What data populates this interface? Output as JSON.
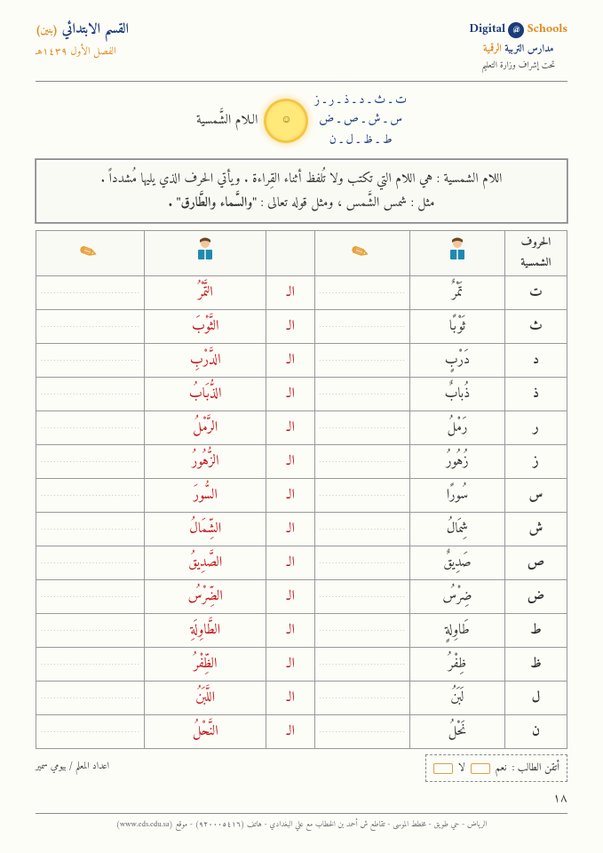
{
  "header": {
    "logo_en_left": "Digital",
    "logo_at": "@",
    "logo_en_right": "Schools",
    "logo_ar1_a": "مدارس التربية ",
    "logo_ar1_b": "الرقمية",
    "logo_ar2": "تحت إشراف وزارة التعليم",
    "section_title": "القسم الابتدائي",
    "section_sub": "(بنين)",
    "term": "الفصل الأول ١٤٣٩هـ"
  },
  "diagram": {
    "title": "الـلام الشَّمسية",
    "sun_face": "☺",
    "letters_line1": "ت ـ ث ـ د ـ ذ ـ ر ـ ز",
    "letters_line2": "س ـ ش ـ ص ـ ض",
    "letters_line3": "ط ـ ظ ـ ل ـ ن"
  },
  "definition": {
    "line1": "اللام الشمسية : هي اللام التي تكتب ولا تُلفظ أثناء القِراءة . ويأتي الحرف الذي يليها مُشدداً .",
    "line2_a": "مثل : شمس الشَّمس ، ومثل قوله تعالى : ",
    "line2_b": "\"والسَّماء والطَّارق\" ."
  },
  "table": {
    "header_letter": "الحروف الشمسية",
    "rows": [
      {
        "letter": "ت",
        "read": "تَمْرٌ",
        "al": "الـ",
        "word": "التَّمْرُ"
      },
      {
        "letter": "ث",
        "read": "ثَوْبًا",
        "al": "الـ",
        "word": "الثَّوْبَ"
      },
      {
        "letter": "د",
        "read": "دَرْبٍ",
        "al": "الـ",
        "word": "الدَّرْبِ"
      },
      {
        "letter": "ذ",
        "read": "ذُبابٌ",
        "al": "الـ",
        "word": "الذُّبَابُ"
      },
      {
        "letter": "ر",
        "read": "رَمْلُ",
        "al": "الـ",
        "word": "الرَّمْلُ"
      },
      {
        "letter": "ز",
        "read": "زُهُورُ",
        "al": "الـ",
        "word": "الزُّهُورُ"
      },
      {
        "letter": "س",
        "read": "سُورًا",
        "al": "الـ",
        "word": "السُّورَ"
      },
      {
        "letter": "ش",
        "read": "شِمَالُ",
        "al": "الـ",
        "word": "الشِّمَالُ"
      },
      {
        "letter": "ص",
        "read": "صَدِيقٌ",
        "al": "الـ",
        "word": "الصَّدِيقُ"
      },
      {
        "letter": "ض",
        "read": "ضِرْسُ",
        "al": "الـ",
        "word": "الضِّرْسُ"
      },
      {
        "letter": "ط",
        "read": "طَاوِلةٍ",
        "al": "الـ",
        "word": "الطَّاوِلَةِ"
      },
      {
        "letter": "ظ",
        "read": "ظِفْرُ",
        "al": "الـ",
        "word": "الظِّفْرُ"
      },
      {
        "letter": "ل",
        "read": "لَبَنُ",
        "al": "الـ",
        "word": "اللَّبَنُ"
      },
      {
        "letter": "ن",
        "read": "نَحْلُ",
        "al": "الـ",
        "word": "النَّحْلُ"
      }
    ]
  },
  "footer": {
    "mastery_label": "أتقن الطالب :",
    "yes": "نعم",
    "no": "لا",
    "teacher": "اعداد المعلم / بيومي سمير",
    "page": "١٨",
    "address": "الرياض - حي طويق - مخطط الموسى - تقاطع ش أحمد بن الخطاب مع علي البغدادي - هاتف (٩٢٠٠٠٥٤١٦) - موقع (www.eds.edu.sa)"
  }
}
